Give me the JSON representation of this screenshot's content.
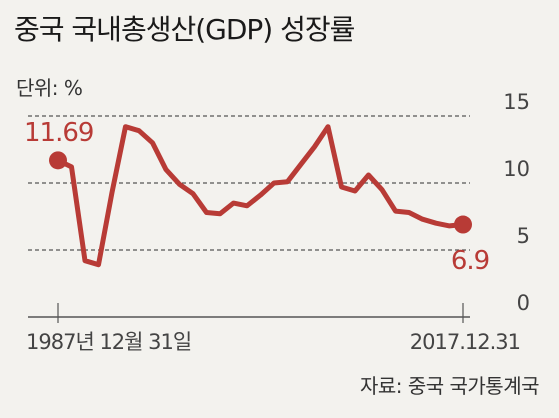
{
  "chart_data": {
    "type": "line",
    "title": "중국 국내총생산(GDP) 성장률",
    "unit_label": "단위: %",
    "source": "자료: 중국 국가통계국",
    "x_start_label": "1987년 12월 31일",
    "x_end_label": "2017.12.31",
    "xlim": [
      1987,
      2017
    ],
    "ylim": [
      0,
      15
    ],
    "y_ticks": [
      "15",
      "10",
      "5",
      "0"
    ],
    "y_tick_values": [
      15,
      10,
      5,
      0
    ],
    "gridlines": [
      15,
      10,
      5
    ],
    "start_label": "11.69",
    "end_label": "6.9",
    "series": [
      {
        "x": [
          1987,
          1988,
          1989,
          1990,
          1991,
          1992,
          1993,
          1994,
          1995,
          1996,
          1997,
          1998,
          1999,
          2000,
          2001,
          2002,
          2003,
          2004,
          2005,
          2006,
          2007,
          2008,
          2009,
          2010,
          2011,
          2012,
          2013,
          2014,
          2015,
          2016,
          2017
        ],
        "values": [
          11.69,
          11.2,
          4.2,
          3.9,
          9.3,
          14.2,
          13.9,
          13.0,
          11.0,
          9.9,
          9.2,
          7.8,
          7.7,
          8.5,
          8.3,
          9.1,
          10.0,
          10.1,
          11.4,
          12.7,
          14.2,
          9.7,
          9.4,
          10.6,
          9.5,
          7.9,
          7.8,
          7.3,
          7.0,
          6.8,
          6.9
        ]
      }
    ],
    "colors": {
      "line": "#b83b36",
      "grid": "#555555",
      "axis": "#555555",
      "label": "#b83b36",
      "tick": "#444444"
    }
  }
}
